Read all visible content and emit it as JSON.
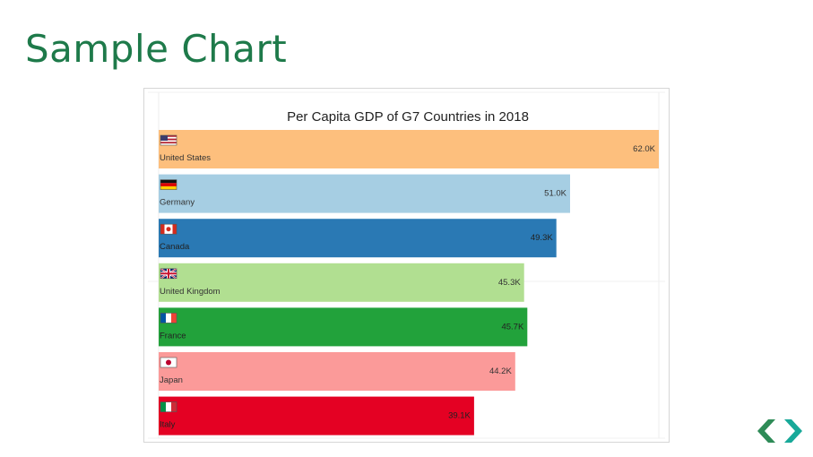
{
  "slide": {
    "title": "Sample Chart"
  },
  "colors": {
    "title": "#1e7a4a",
    "nav_left": "#2e8b57",
    "nav_right": "#18a999"
  },
  "icons": {
    "nav": "chevron-left-right-icon"
  },
  "chart_data": {
    "type": "bar",
    "orientation": "horizontal",
    "title": "Per Capita GDP of G7 Countries in 2018",
    "xlabel": "",
    "ylabel": "",
    "xlim": [
      0,
      62.0
    ],
    "grid": true,
    "categories": [
      "United States",
      "Germany",
      "Canada",
      "United Kingdom",
      "France",
      "Japan",
      "Italy"
    ],
    "values": [
      62.0,
      51.0,
      49.3,
      45.3,
      45.7,
      44.2,
      39.1
    ],
    "value_labels": [
      "62.0K",
      "51.0K",
      "49.3K",
      "45.3K",
      "45.7K",
      "44.2K",
      "39.1K"
    ],
    "bar_colors": [
      "#fdbf7d",
      "#a6cee3",
      "#2a79b4",
      "#b1df91",
      "#22a23b",
      "#fb9a99",
      "#e40123"
    ],
    "label_colors": [
      "#333333",
      "#333333",
      "#222222",
      "#333333",
      "#222222",
      "#333333",
      "#222222"
    ],
    "flags": [
      "us-flag-icon",
      "germany-flag-icon",
      "canada-flag-icon",
      "uk-flag-icon",
      "france-flag-icon",
      "japan-flag-icon",
      "italy-flag-icon"
    ]
  }
}
